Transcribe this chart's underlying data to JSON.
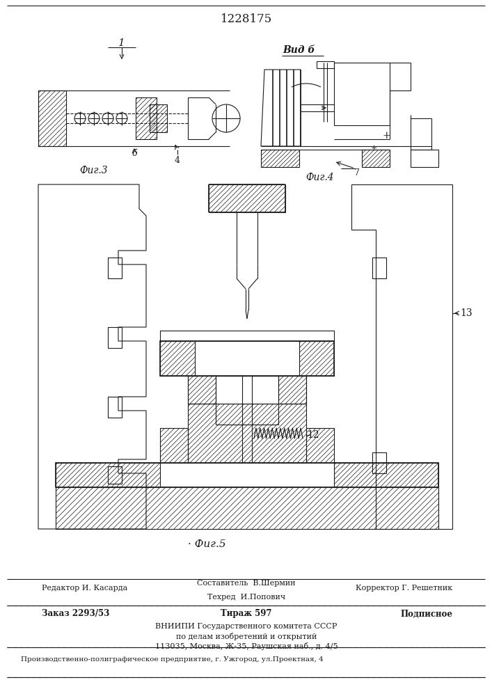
{
  "patent_number": "1228175",
  "background_color": "#ffffff",
  "drawing_color": "#1a1a1a",
  "fig_width": 7.07,
  "fig_height": 10.0,
  "dpi": 100,
  "footer": {
    "line1_left": "Редактор И. Касарда",
    "line1_center_top": "Составитель  В.Шермин",
    "line1_center_bot": "Техред  И.Попович",
    "line1_right": "Корректор Г. Решетник",
    "line2_left": "Заказ 2293/53",
    "line2_center": "Тираж 597",
    "line2_right": "Подписное",
    "vnipi1": "ВНИИПИ Государственного комитета СССР",
    "vnipi2": "по делам изобретений и открытий",
    "vnipi3": "113035, Москва, Ж-35, Раушская наб., д. 4/5",
    "bottom": "Производственно-полиграфическое предприятие, г. Ужгород, ул.Проектная, 4"
  }
}
